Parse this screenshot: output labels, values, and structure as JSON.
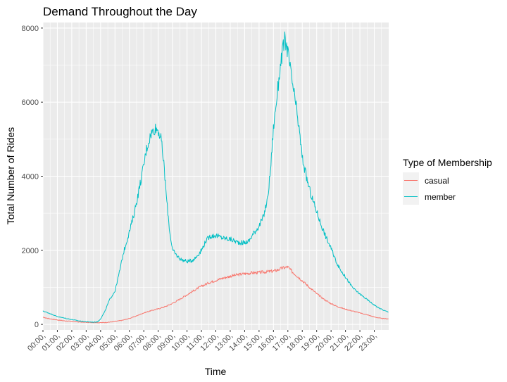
{
  "chart_data": {
    "type": "line",
    "title": "Demand Throughout the Day",
    "xlabel": "Time",
    "ylabel": "Total Number of Rides",
    "xlim": [
      0,
      24
    ],
    "ylim": [
      -150,
      8150
    ],
    "yticks": [
      0,
      2000,
      4000,
      6000,
      8000
    ],
    "ytick_labels": [
      "0",
      "2000",
      "4000",
      "6000",
      "8000"
    ],
    "x_categories": [
      "00:00",
      "01:00",
      "02:00",
      "03:00",
      "04:00",
      "05:00",
      "06:00",
      "07:00",
      "08:00",
      "09:00",
      "10:00",
      "11:00",
      "12:00",
      "13:00",
      "14:00",
      "15:00",
      "16:00",
      "17:00",
      "18:00",
      "19:00",
      "20:00",
      "21:00",
      "22:00",
      "23:00"
    ],
    "x_tick_suffix": ",",
    "legend": {
      "title": "Type of Membership",
      "position": "right"
    },
    "grid": true,
    "series": [
      {
        "name": "casual",
        "color": "#F8766D",
        "points": [
          [
            0,
            190
          ],
          [
            0.5,
            150
          ],
          [
            1,
            120
          ],
          [
            1.5,
            95
          ],
          [
            2,
            80
          ],
          [
            2.5,
            65
          ],
          [
            3,
            55
          ],
          [
            3.5,
            50
          ],
          [
            4,
            45
          ],
          [
            4.5,
            55
          ],
          [
            5,
            80
          ],
          [
            5.5,
            110
          ],
          [
            6,
            160
          ],
          [
            6.5,
            230
          ],
          [
            7,
            310
          ],
          [
            7.5,
            370
          ],
          [
            8,
            420
          ],
          [
            8.5,
            480
          ],
          [
            9,
            570
          ],
          [
            9.5,
            680
          ],
          [
            10,
            800
          ],
          [
            10.5,
            920
          ],
          [
            11,
            1030
          ],
          [
            11.5,
            1120
          ],
          [
            12,
            1190
          ],
          [
            12.5,
            1250
          ],
          [
            13,
            1300
          ],
          [
            13.5,
            1340
          ],
          [
            14,
            1370
          ],
          [
            14.5,
            1390
          ],
          [
            15,
            1400
          ],
          [
            15.5,
            1420
          ],
          [
            16,
            1440
          ],
          [
            16.3,
            1470
          ],
          [
            16.6,
            1520
          ],
          [
            17,
            1550
          ],
          [
            17.3,
            1420
          ],
          [
            17.6,
            1320
          ],
          [
            18,
            1180
          ],
          [
            18.5,
            1000
          ],
          [
            19,
            830
          ],
          [
            19.5,
            680
          ],
          [
            20,
            560
          ],
          [
            20.5,
            470
          ],
          [
            21,
            410
          ],
          [
            21.5,
            360
          ],
          [
            22,
            310
          ],
          [
            22.5,
            260
          ],
          [
            23,
            200
          ],
          [
            23.5,
            160
          ],
          [
            23.98,
            150
          ]
        ]
      },
      {
        "name": "member",
        "color": "#00BFC4",
        "points": [
          [
            0,
            360
          ],
          [
            0.3,
            320
          ],
          [
            0.7,
            260
          ],
          [
            1,
            210
          ],
          [
            1.5,
            170
          ],
          [
            2,
            130
          ],
          [
            2.5,
            95
          ],
          [
            3,
            70
          ],
          [
            3.5,
            60
          ],
          [
            3.8,
            70
          ],
          [
            4,
            150
          ],
          [
            4.3,
            350
          ],
          [
            4.6,
            650
          ],
          [
            5,
            900
          ],
          [
            5.3,
            1400
          ],
          [
            5.6,
            1950
          ],
          [
            6,
            2500
          ],
          [
            6.3,
            2950
          ],
          [
            6.6,
            3500
          ],
          [
            6.9,
            4100
          ],
          [
            7.2,
            4750
          ],
          [
            7.5,
            5150
          ],
          [
            7.8,
            5300
          ],
          [
            8,
            5250
          ],
          [
            8.2,
            5000
          ],
          [
            8.4,
            4300
          ],
          [
            8.6,
            3300
          ],
          [
            8.8,
            2500
          ],
          [
            9,
            2000
          ],
          [
            9.3,
            1850
          ],
          [
            9.6,
            1750
          ],
          [
            10,
            1700
          ],
          [
            10.3,
            1720
          ],
          [
            10.6,
            1800
          ],
          [
            11,
            2000
          ],
          [
            11.3,
            2250
          ],
          [
            11.6,
            2380
          ],
          [
            12,
            2400
          ],
          [
            12.5,
            2330
          ],
          [
            13,
            2300
          ],
          [
            13.5,
            2220
          ],
          [
            14,
            2200
          ],
          [
            14.3,
            2250
          ],
          [
            14.6,
            2450
          ],
          [
            15,
            2650
          ],
          [
            15.3,
            2900
          ],
          [
            15.6,
            3400
          ],
          [
            15.8,
            4200
          ],
          [
            16,
            5300
          ],
          [
            16.2,
            6000
          ],
          [
            16.4,
            6700
          ],
          [
            16.6,
            7300
          ],
          [
            16.8,
            7700
          ],
          [
            17,
            7350
          ],
          [
            17.2,
            6800
          ],
          [
            17.4,
            6300
          ],
          [
            17.6,
            5800
          ],
          [
            17.8,
            5200
          ],
          [
            18,
            4500
          ],
          [
            18.3,
            3950
          ],
          [
            18.6,
            3500
          ],
          [
            19,
            3050
          ],
          [
            19.3,
            2700
          ],
          [
            19.6,
            2400
          ],
          [
            20,
            2050
          ],
          [
            20.3,
            1750
          ],
          [
            20.6,
            1500
          ],
          [
            21,
            1280
          ],
          [
            21.3,
            1100
          ],
          [
            21.6,
            950
          ],
          [
            22,
            820
          ],
          [
            22.4,
            700
          ],
          [
            22.8,
            580
          ],
          [
            23.2,
            470
          ],
          [
            23.6,
            390
          ],
          [
            23.98,
            330
          ]
        ]
      }
    ]
  }
}
